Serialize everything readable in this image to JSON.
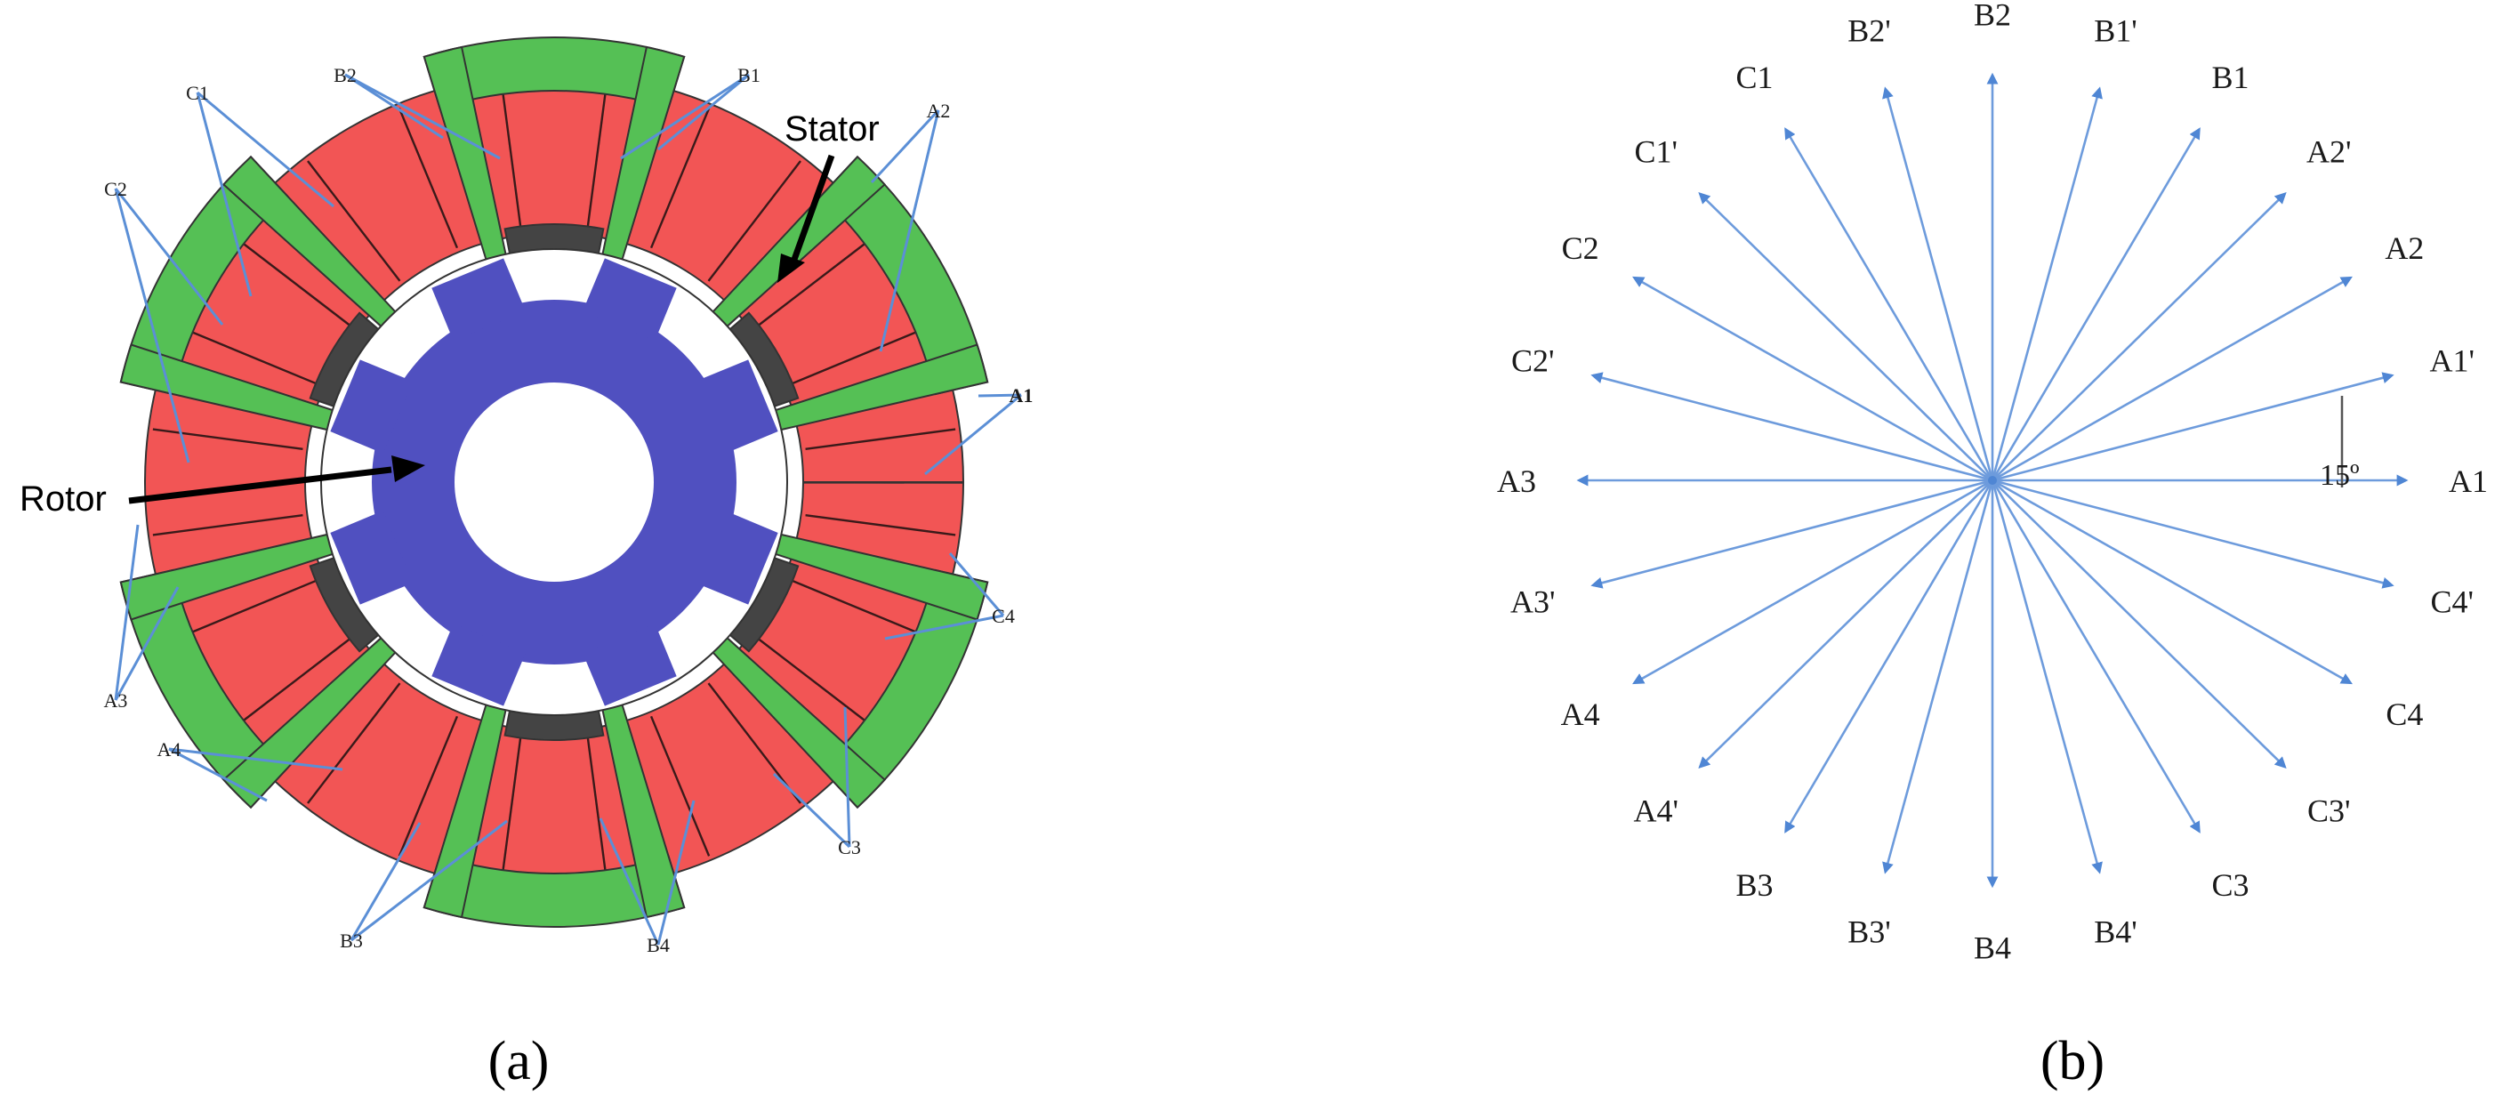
{
  "panel_a": {
    "caption": "(a)",
    "rotor_label": "Rotor",
    "stator_label": "Stator",
    "coil_labels": [
      "A1",
      "A2",
      "A3",
      "A4",
      "B1",
      "B2",
      "B3",
      "B4",
      "C1",
      "C2",
      "C3",
      "C4"
    ],
    "colors": {
      "stator_green": "#55c055",
      "coil_red": "#f25555",
      "rotor_blue": "#5050c0",
      "gap_dark": "#444444",
      "leader_blue": "#5b8fd6"
    }
  },
  "panel_b": {
    "caption": "(b)",
    "angle_label": "15º",
    "phasors": [
      {
        "label": "A1",
        "angle_deg": 0
      },
      {
        "label": "A1'",
        "angle_deg": 15
      },
      {
        "label": "A2",
        "angle_deg": 30
      },
      {
        "label": "A2'",
        "angle_deg": 45
      },
      {
        "label": "B1",
        "angle_deg": 60
      },
      {
        "label": "B1'",
        "angle_deg": 75
      },
      {
        "label": "B2",
        "angle_deg": 90
      },
      {
        "label": "B2'",
        "angle_deg": 105
      },
      {
        "label": "C1",
        "angle_deg": 120
      },
      {
        "label": "C1'",
        "angle_deg": 135
      },
      {
        "label": "C2",
        "angle_deg": 150
      },
      {
        "label": "C2'",
        "angle_deg": 165
      },
      {
        "label": "A3",
        "angle_deg": 180
      },
      {
        "label": "A3'",
        "angle_deg": 195
      },
      {
        "label": "A4",
        "angle_deg": 210
      },
      {
        "label": "A4'",
        "angle_deg": 225
      },
      {
        "label": "B3",
        "angle_deg": 240
      },
      {
        "label": "B3'",
        "angle_deg": 255
      },
      {
        "label": "B4",
        "angle_deg": 270
      },
      {
        "label": "B4'",
        "angle_deg": 285
      },
      {
        "label": "C3",
        "angle_deg": 300
      },
      {
        "label": "C3'",
        "angle_deg": 315
      },
      {
        "label": "C4",
        "angle_deg": 330
      },
      {
        "label": "C4'",
        "angle_deg": 345
      }
    ],
    "colors": {
      "spoke": "#6d9bdc"
    }
  }
}
